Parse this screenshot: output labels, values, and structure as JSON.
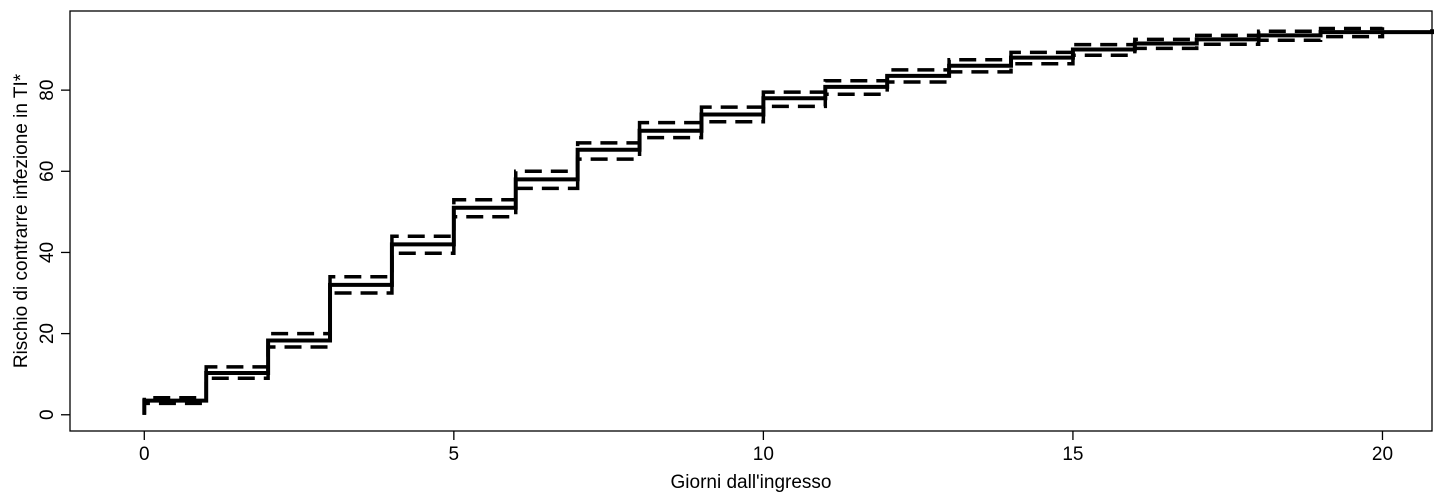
{
  "chart_data": {
    "type": "line",
    "xlabel": "Giorni dall'ingresso",
    "ylabel": "Rischio di contrarre infezione in TI*",
    "xlim": [
      -1.2,
      20.8
    ],
    "ylim": [
      -4,
      99.5
    ],
    "xticks": [
      0,
      5,
      10,
      15,
      20
    ],
    "yticks": [
      0,
      20,
      40,
      60,
      80
    ],
    "grid": false,
    "legend": "none",
    "line_style": "step",
    "series": [
      {
        "style": "solid",
        "x": [
          0,
          1,
          2,
          3,
          4,
          5,
          6,
          7,
          8,
          9,
          10,
          11,
          12,
          13,
          14,
          15,
          16,
          17,
          18,
          19,
          20.8
        ],
        "y": [
          3.5,
          10.3,
          18.3,
          32.0,
          42.0,
          51.0,
          58.0,
          65.3,
          70.0,
          74.0,
          78.0,
          80.8,
          83.5,
          86.0,
          88.0,
          90.0,
          91.5,
          92.5,
          93.5,
          94.3,
          95.0
        ]
      },
      {
        "style": "dashed",
        "x": [
          0,
          1,
          2,
          3,
          4,
          5,
          6,
          7,
          8,
          9,
          10,
          11,
          12,
          13,
          14,
          15,
          16,
          17,
          18,
          19,
          20
        ],
        "y": [
          4.2,
          11.8,
          20.0,
          34.0,
          44.0,
          53.0,
          60.0,
          67.0,
          72.0,
          75.8,
          79.5,
          82.3,
          85.0,
          87.5,
          89.3,
          91.2,
          92.5,
          93.5,
          94.5,
          95.2,
          95.5
        ]
      },
      {
        "style": "dashed",
        "x": [
          0,
          1,
          2,
          3,
          4,
          5,
          6,
          7,
          8,
          9,
          10,
          11,
          12,
          13,
          14,
          15,
          16,
          17,
          18,
          19,
          20
        ],
        "y": [
          2.8,
          9.0,
          16.7,
          30.0,
          39.8,
          48.8,
          55.8,
          63.0,
          68.3,
          72.2,
          76.0,
          79.0,
          82.0,
          84.5,
          86.5,
          88.6,
          90.3,
          91.3,
          92.3,
          93.2,
          94.0
        ]
      }
    ]
  }
}
